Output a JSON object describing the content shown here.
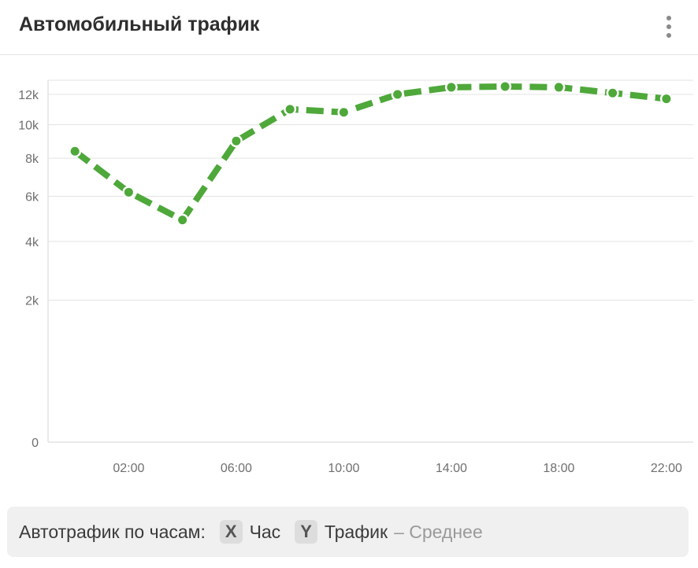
{
  "header": {
    "title": "Автомобильный трафик",
    "menu_icon": "more-vertical-icon"
  },
  "colors": {
    "line": "#4ea83a",
    "grid": "#e3e3e3",
    "axis": "#d6d6d6"
  },
  "chart_data": {
    "type": "line",
    "title": "Автомобильный трафик",
    "xlabel": "",
    "ylabel": "",
    "x": [
      "00:00",
      "02:00",
      "04:00",
      "06:00",
      "08:00",
      "10:00",
      "12:00",
      "14:00",
      "16:00",
      "18:00",
      "20:00",
      "22:00"
    ],
    "x_tick_labels": [
      "02:00",
      "06:00",
      "10:00",
      "14:00",
      "18:00",
      "22:00"
    ],
    "y_tick_values": [
      0,
      2000,
      4000,
      6000,
      8000,
      10000,
      12000
    ],
    "y_tick_labels": [
      "0",
      "2k",
      "4k",
      "6k",
      "8k",
      "10k",
      "12k"
    ],
    "y_scale": "sqrt",
    "ylim": [
      0,
      13000
    ],
    "grid": true,
    "legend": "none",
    "series": [
      {
        "values": [
          8400,
          6200,
          4900,
          9000,
          11000,
          10800,
          12000,
          12500,
          12550,
          12500,
          12100,
          11700
        ]
      }
    ]
  },
  "footer": {
    "label": "Автотрафик по часам:",
    "x_chip": "X",
    "x_field": "Час",
    "y_chip": "Y",
    "y_field": "Трафик",
    "aggregation": "– Среднее"
  }
}
